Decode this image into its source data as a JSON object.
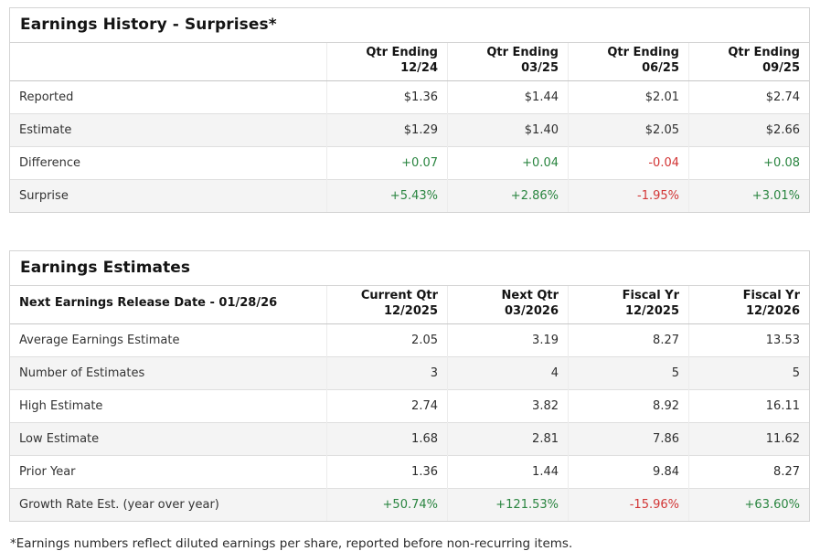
{
  "colors": {
    "positive": "#2a8540",
    "negative": "#d23535"
  },
  "history": {
    "title": "Earnings History - Surprises*",
    "corner": "",
    "columns": [
      "Qtr Ending\n12/24",
      "Qtr Ending\n03/25",
      "Qtr Ending\n06/25",
      "Qtr Ending\n09/25"
    ],
    "rows": [
      {
        "label": "Reported",
        "values": [
          "$1.36",
          "$1.44",
          "$2.01",
          "$2.74"
        ]
      },
      {
        "label": "Estimate",
        "values": [
          "$1.29",
          "$1.40",
          "$2.05",
          "$2.66"
        ]
      },
      {
        "label": "Difference",
        "values": [
          "+0.07",
          "+0.04",
          "-0.04",
          "+0.08"
        ]
      },
      {
        "label": "Surprise",
        "values": [
          "+5.43%",
          "+2.86%",
          "-1.95%",
          "+3.01%"
        ]
      }
    ]
  },
  "estimates": {
    "title": "Earnings Estimates",
    "corner": "Next Earnings Release Date - 01/28/26",
    "columns": [
      "Current Qtr\n12/2025",
      "Next Qtr\n03/2026",
      "Fiscal Yr\n12/2025",
      "Fiscal Yr\n12/2026"
    ],
    "rows": [
      {
        "label": "Average Earnings Estimate",
        "values": [
          "2.05",
          "3.19",
          "8.27",
          "13.53"
        ]
      },
      {
        "label": "Number of Estimates",
        "values": [
          "3",
          "4",
          "5",
          "5"
        ]
      },
      {
        "label": "High Estimate",
        "values": [
          "2.74",
          "3.82",
          "8.92",
          "16.11"
        ]
      },
      {
        "label": "Low Estimate",
        "values": [
          "1.68",
          "2.81",
          "7.86",
          "11.62"
        ]
      },
      {
        "label": "Prior Year",
        "values": [
          "1.36",
          "1.44",
          "9.84",
          "8.27"
        ]
      },
      {
        "label": "Growth Rate Est. (year over year)",
        "values": [
          "+50.74%",
          "+121.53%",
          "-15.96%",
          "+63.60%"
        ]
      }
    ]
  },
  "footnote": "*Earnings numbers reflect diluted earnings per share, reported before non-recurring items."
}
